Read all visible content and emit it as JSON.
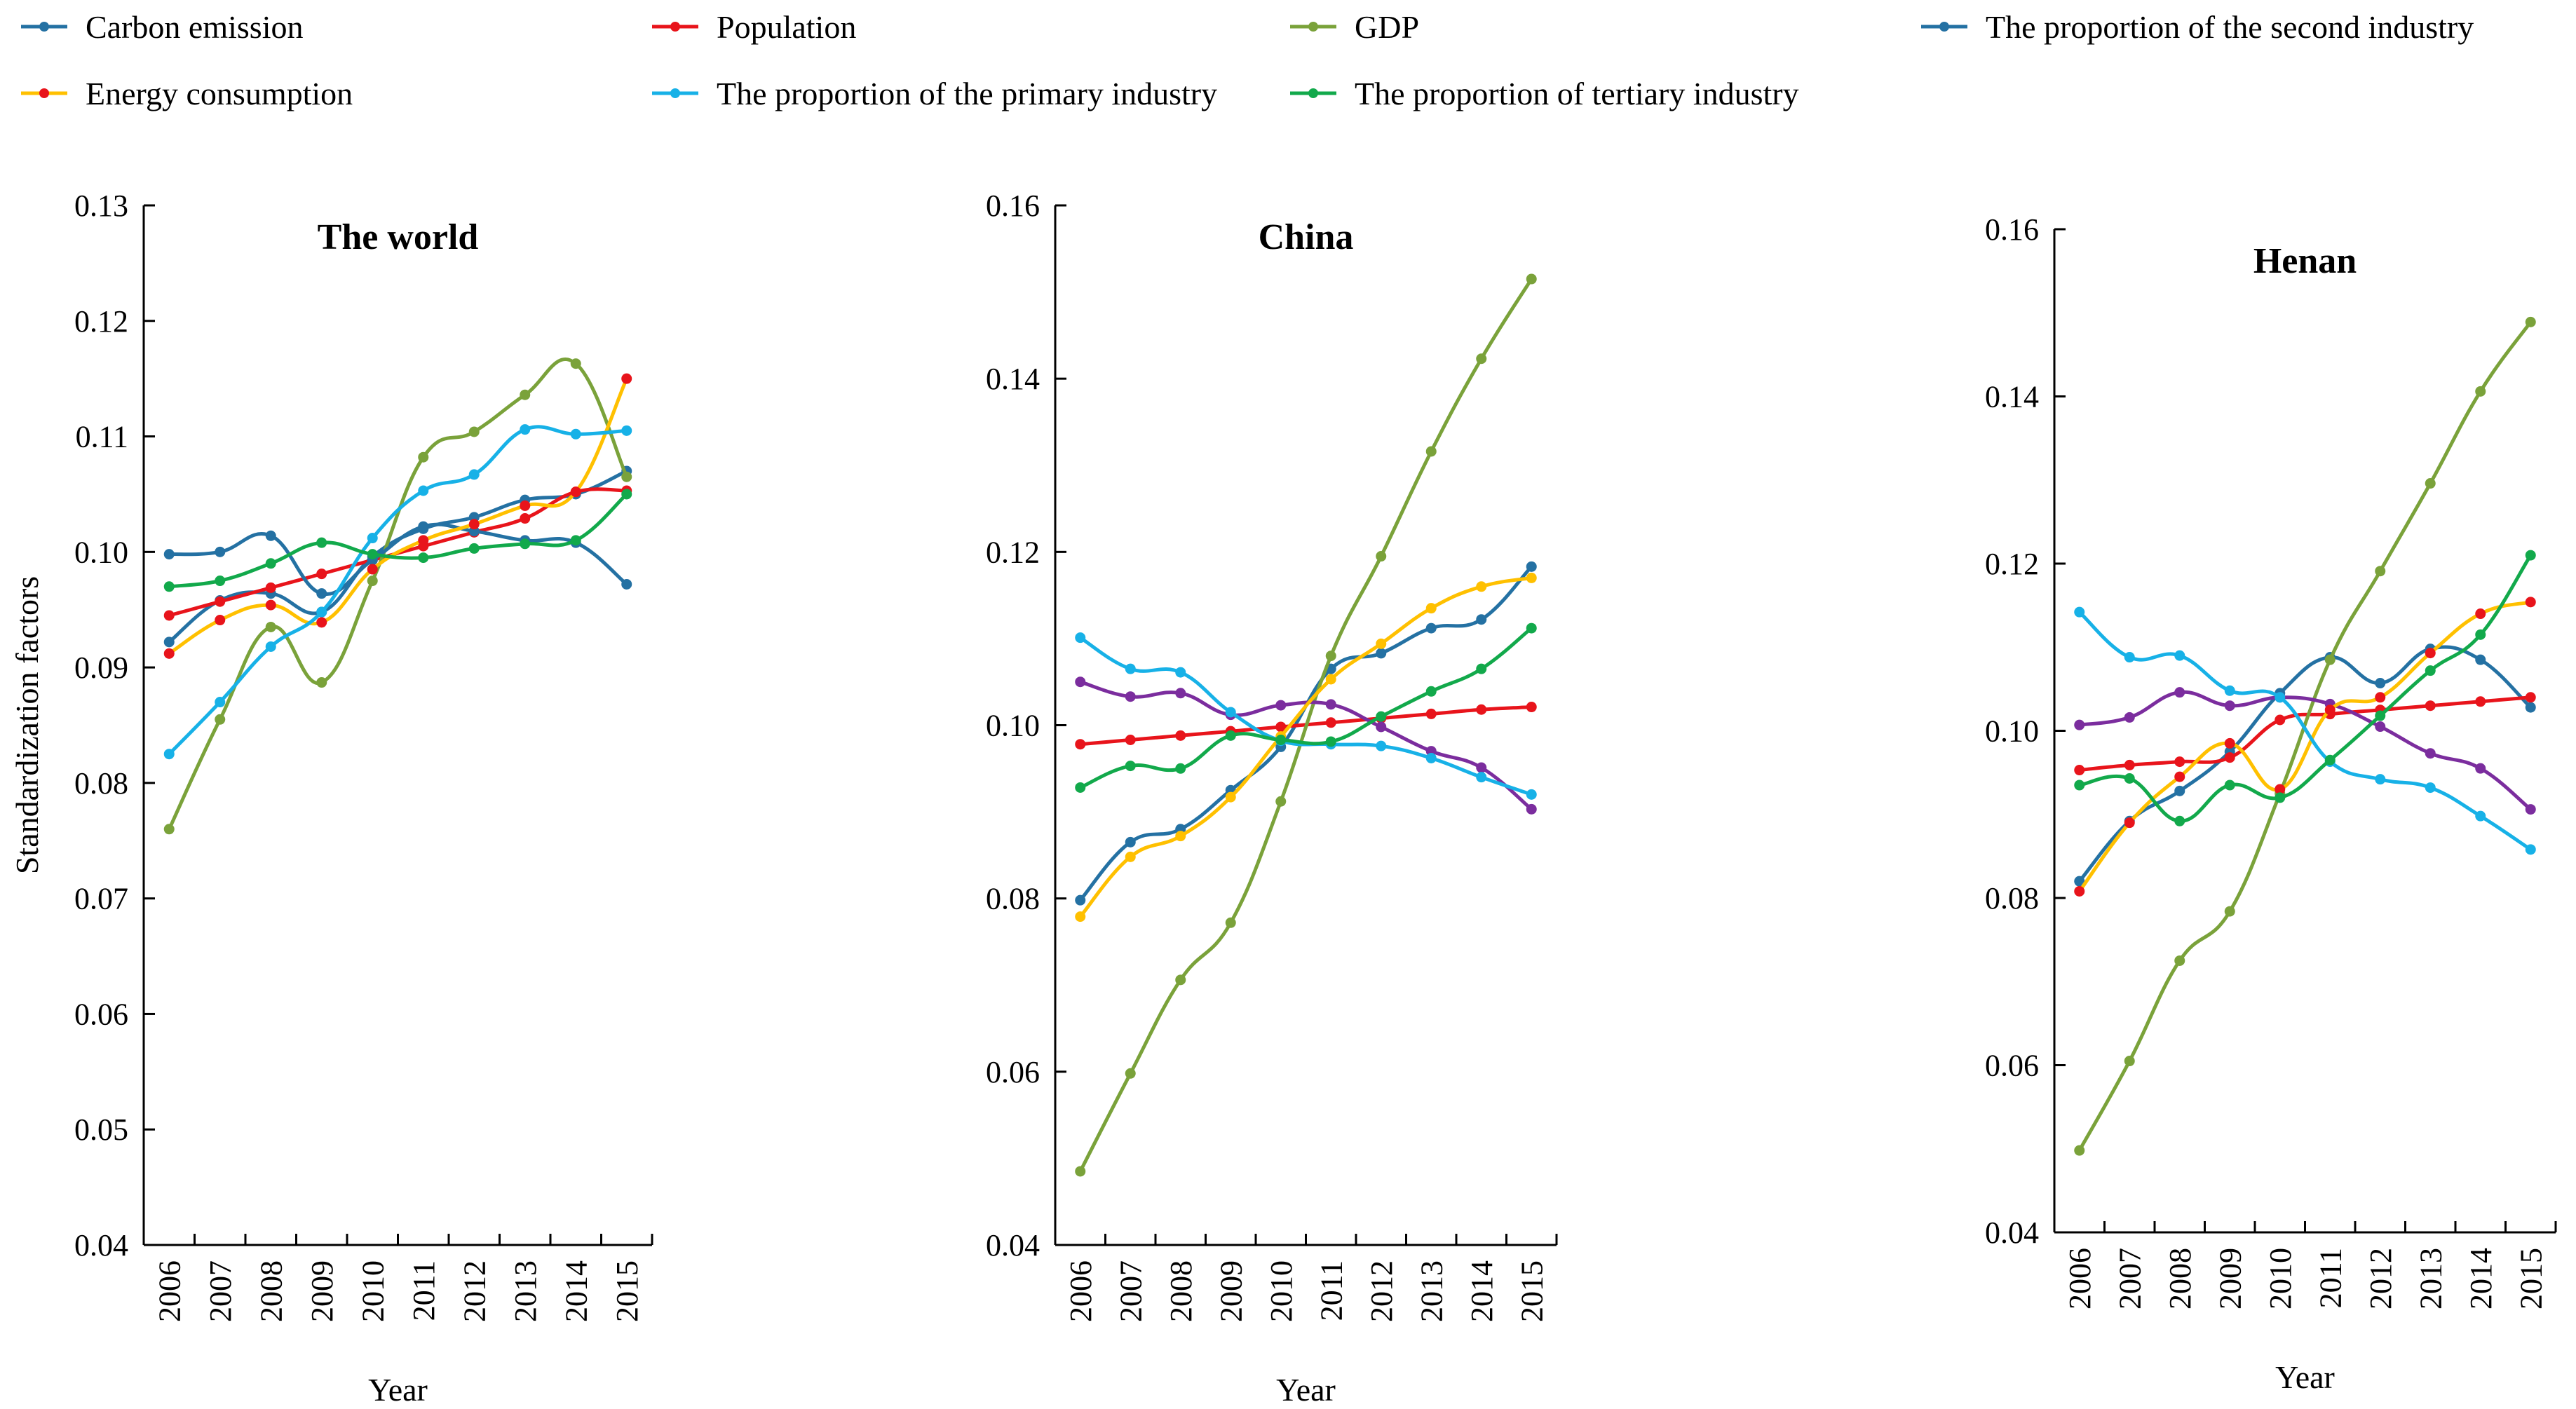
{
  "legend": [
    {
      "name": "Carbon emission",
      "color": "#2471a3"
    },
    {
      "name": "Population",
      "color": "#e8141b"
    },
    {
      "name": "GDP",
      "color": "#7aa23a"
    },
    {
      "name": "The proportion of the second industry",
      "color": "#2471a3"
    },
    {
      "name": "Energy consumption",
      "color": "#ffc000"
    },
    {
      "name": "The proportion of the primary industry",
      "color": "#17b1e7"
    },
    {
      "name": "The proportion of tertiary industry",
      "color": "#12a94b"
    }
  ],
  "chart_data": [
    {
      "type": "line",
      "title": "The world",
      "xlabel": "Year",
      "ylabel": "Standardization factors",
      "categories": [
        "2006",
        "2007",
        "2008",
        "2009",
        "2010",
        "2011",
        "2012",
        "2013",
        "2014",
        "2015"
      ],
      "ylim": [
        0.04,
        0.13
      ],
      "yticks": [
        "0.04",
        "0.05",
        "0.06",
        "0.07",
        "0.08",
        "0.09",
        "0.10",
        "0.11",
        "0.12",
        "0.13"
      ],
      "series": [
        {
          "name": "Carbon emission",
          "color": "#2471a3",
          "marker_color": "#2471a3",
          "values": [
            0.0922,
            0.0958,
            0.0964,
            0.0948,
            0.0996,
            0.102,
            0.103,
            0.1045,
            0.105,
            0.107
          ]
        },
        {
          "name": "Population",
          "color": "#e8141b",
          "marker_color": "#e8141b",
          "values": [
            0.0945,
            0.0957,
            0.0969,
            0.0981,
            0.0993,
            0.1005,
            0.1017,
            0.1029,
            0.1052,
            0.1053
          ]
        },
        {
          "name": "GDP",
          "color": "#7aa23a",
          "marker_color": "#7aa23a",
          "values": [
            0.076,
            0.0855,
            0.0935,
            0.0887,
            0.0975,
            0.1082,
            0.1104,
            0.1136,
            0.1163,
            0.1065
          ]
        },
        {
          "name": "The proportion of the second industry",
          "color": "#2471a3",
          "marker_color": "#2471a3",
          "values": [
            0.0998,
            0.1,
            0.1014,
            0.0964,
            0.0993,
            0.1022,
            0.1018,
            0.101,
            0.1008,
            0.0972
          ]
        },
        {
          "name": "Energy consumption",
          "color": "#ffc000",
          "marker_color": "#e8141b",
          "values": [
            0.0912,
            0.0941,
            0.0954,
            0.0939,
            0.0985,
            0.101,
            0.1024,
            0.104,
            0.1052,
            0.115
          ]
        },
        {
          "name": "The proportion of the primary industry",
          "color": "#17b1e7",
          "marker_color": "#17b1e7",
          "values": [
            0.0825,
            0.087,
            0.0918,
            0.0948,
            0.1012,
            0.1053,
            0.1067,
            0.1106,
            0.1102,
            0.1105
          ]
        },
        {
          "name": "The proportion of tertiary industry",
          "color": "#12a94b",
          "marker_color": "#12a94b",
          "values": [
            0.097,
            0.0975,
            0.099,
            0.1008,
            0.0998,
            0.0995,
            0.1003,
            0.1007,
            0.101,
            0.105
          ]
        }
      ]
    },
    {
      "type": "line",
      "title": "China",
      "xlabel": "Year",
      "ylabel": "",
      "categories": [
        "2006",
        "2007",
        "2008",
        "2009",
        "2010",
        "2011",
        "2012",
        "2013",
        "2014",
        "2015"
      ],
      "ylim": [
        0.04,
        0.16
      ],
      "yticks": [
        "0.04",
        "0.06",
        "0.08",
        "0.10",
        "0.12",
        "0.14",
        "0.16"
      ],
      "series": [
        {
          "name": "Carbon emission",
          "color": "#2471a3",
          "marker_color": "#2471a3",
          "values": [
            0.0798,
            0.0865,
            0.088,
            0.0925,
            0.0975,
            0.1065,
            0.1083,
            0.1112,
            0.1122,
            0.1183
          ]
        },
        {
          "name": "Population",
          "color": "#e8141b",
          "marker_color": "#e8141b",
          "values": [
            0.0978,
            0.0983,
            0.0988,
            0.0993,
            0.0998,
            0.1003,
            0.1008,
            0.1013,
            0.1018,
            0.1021
          ]
        },
        {
          "name": "GDP",
          "color": "#7aa23a",
          "marker_color": "#7aa23a",
          "values": [
            0.0485,
            0.0598,
            0.0706,
            0.0772,
            0.0912,
            0.108,
            0.1195,
            0.1316,
            0.1423,
            0.1515
          ]
        },
        {
          "name": "The proportion of the second industry",
          "color": "#7b2d9e",
          "marker_color": "#7b2d9e",
          "values": [
            0.105,
            0.1033,
            0.1037,
            0.1012,
            0.1023,
            0.1024,
            0.0998,
            0.097,
            0.0951,
            0.0903
          ]
        },
        {
          "name": "Energy consumption",
          "color": "#ffc000",
          "marker_color": "#ffc000",
          "values": [
            0.0779,
            0.0848,
            0.0872,
            0.0917,
            0.0987,
            0.1053,
            0.1094,
            0.1135,
            0.116,
            0.117
          ]
        },
        {
          "name": "The proportion of the primary industry",
          "color": "#17b1e7",
          "marker_color": "#17b1e7",
          "values": [
            0.1101,
            0.1065,
            0.1061,
            0.1015,
            0.0982,
            0.0978,
            0.0976,
            0.0962,
            0.094,
            0.092
          ]
        },
        {
          "name": "The proportion of tertiary industry",
          "color": "#12a94b",
          "marker_color": "#12a94b",
          "values": [
            0.0928,
            0.0953,
            0.095,
            0.0988,
            0.0983,
            0.0981,
            0.101,
            0.1039,
            0.1065,
            0.1112
          ]
        }
      ]
    },
    {
      "type": "line",
      "title": "Henan",
      "xlabel": "Year",
      "ylabel": "",
      "categories": [
        "2006",
        "2007",
        "2008",
        "2009",
        "2010",
        "2011",
        "2012",
        "2013",
        "2014",
        "2015"
      ],
      "ylim": [
        0.04,
        0.16
      ],
      "yticks": [
        "0.04",
        "0.06",
        "0.08",
        "0.10",
        "0.12",
        "0.14",
        "0.16"
      ],
      "series": [
        {
          "name": "Carbon emission",
          "color": "#2471a3",
          "marker_color": "#2471a3",
          "values": [
            0.082,
            0.0892,
            0.0928,
            0.0975,
            0.1045,
            0.1088,
            0.1057,
            0.1098,
            0.1085,
            0.1028
          ]
        },
        {
          "name": "Population",
          "color": "#e8141b",
          "marker_color": "#e8141b",
          "values": [
            0.0953,
            0.0959,
            0.0963,
            0.0968,
            0.1013,
            0.102,
            0.1025,
            0.103,
            0.1035,
            0.104
          ]
        },
        {
          "name": "GDP",
          "color": "#7aa23a",
          "marker_color": "#7aa23a",
          "values": [
            0.0498,
            0.0605,
            0.0725,
            0.0784,
            0.0925,
            0.1085,
            0.1191,
            0.1296,
            0.1406,
            0.1489
          ]
        },
        {
          "name": "The proportion of the second industry",
          "color": "#7b2d9e",
          "marker_color": "#7b2d9e",
          "values": [
            0.1007,
            0.1016,
            0.1046,
            0.103,
            0.104,
            0.1032,
            0.1005,
            0.0973,
            0.0955,
            0.0906
          ]
        },
        {
          "name": "Energy consumption",
          "color": "#ffc000",
          "marker_color": "#e8141b",
          "values": [
            0.0808,
            0.089,
            0.0945,
            0.0985,
            0.093,
            0.1025,
            0.104,
            0.1093,
            0.114,
            0.1154
          ]
        },
        {
          "name": "The proportion of the primary industry",
          "color": "#17b1e7",
          "marker_color": "#17b1e7",
          "values": [
            0.1142,
            0.1088,
            0.109,
            0.1048,
            0.104,
            0.0963,
            0.0942,
            0.0932,
            0.0898,
            0.0858
          ]
        },
        {
          "name": "The proportion of tertiary industry",
          "color": "#12a94b",
          "marker_color": "#12a94b",
          "values": [
            0.0935,
            0.0943,
            0.0892,
            0.0935,
            0.092,
            0.0965,
            0.1018,
            0.1072,
            0.1115,
            0.121
          ]
        }
      ]
    }
  ]
}
